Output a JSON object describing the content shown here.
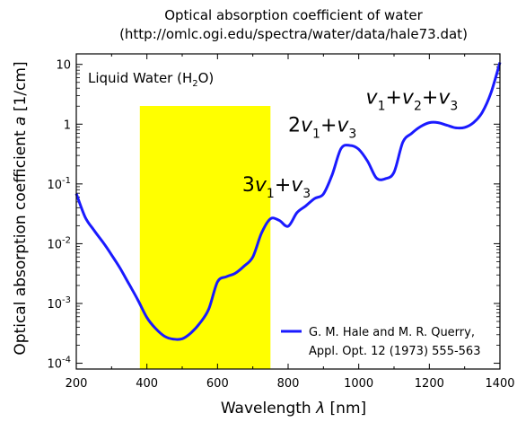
{
  "chart_data": {
    "type": "line",
    "title": "Optical absorption coefficient of water",
    "subtitle": "(http://omlc.ogi.edu/spectra/water/data/hale73.dat)",
    "inner_label_main": "Liquid Water (H",
    "inner_label_sub": "2",
    "inner_label_end": "O)",
    "xlabel_main": "Wavelength ",
    "xlabel_symbol": "λ",
    "xlabel_unit": " [nm]",
    "ylabel_main": "Optical absorption coefficient ",
    "ylabel_symbol": "a",
    "ylabel_unit": " [1/cm]",
    "xlim": [
      200,
      1400
    ],
    "ylim": [
      8e-05,
      15
    ],
    "yscale": "log",
    "x_ticks": [
      "200",
      "400",
      "600",
      "800",
      "1000",
      "1200",
      "1400"
    ],
    "y_ticks": [
      {
        "base": "10",
        "exp": "-4",
        "value": 0.0001
      },
      {
        "base": "10",
        "exp": "-3",
        "value": 0.001
      },
      {
        "base": "10",
        "exp": "-2",
        "value": 0.01
      },
      {
        "base": "10",
        "exp": "-1",
        "value": 0.1
      },
      {
        "base": "1",
        "exp": "",
        "value": 1
      },
      {
        "base": "10",
        "exp": "",
        "value": 10
      }
    ],
    "highlight_band": {
      "x_from": 380,
      "x_to": 750,
      "color": "#ffff00"
    },
    "series": [
      {
        "name": "G. M. Hale and M. R. Querry,",
        "name_line2": "Appl. Opt. 12 (1973) 555-563",
        "color": "#1a1aff",
        "x": [
          200,
          225,
          250,
          275,
          300,
          325,
          350,
          375,
          400,
          425,
          450,
          475,
          500,
          525,
          550,
          575,
          600,
          625,
          650,
          675,
          700,
          725,
          750,
          775,
          800,
          825,
          850,
          875,
          900,
          925,
          950,
          975,
          1000,
          1025,
          1050,
          1075,
          1100,
          1125,
          1150,
          1175,
          1200,
          1225,
          1250,
          1275,
          1300,
          1325,
          1350,
          1375,
          1400
        ],
        "y": [
          0.069,
          0.028,
          0.0168,
          0.0107,
          0.0065,
          0.0038,
          0.00208,
          0.00113,
          0.00058,
          0.000379,
          0.000283,
          0.000253,
          0.000257,
          0.000323,
          0.000468,
          0.0008,
          0.0023,
          0.0028,
          0.0032,
          0.0042,
          0.006,
          0.0152,
          0.0261,
          0.0245,
          0.0196,
          0.033,
          0.0429,
          0.0571,
          0.0678,
          0.144,
          0.391,
          0.441,
          0.379,
          0.24,
          0.126,
          0.122,
          0.157,
          0.5,
          0.702,
          0.91,
          1.06,
          1.06,
          0.958,
          0.868,
          0.882,
          1.06,
          1.58,
          3.4,
          10.8
        ]
      }
    ],
    "annotations": [
      {
        "coef1": "3",
        "v1": "v",
        "s1": "1",
        "op": "+",
        "v2": "v",
        "s2": "3",
        "at_x": 670,
        "at_y": 0.075
      },
      {
        "coef1": "2",
        "v1": "v",
        "s1": "1",
        "op": "+",
        "v2": "v",
        "s2": "3",
        "at_x": 800,
        "at_y": 0.75
      },
      {
        "coef1": "",
        "v1": "v",
        "s1": "1",
        "op": "+",
        "v2": "v",
        "s2": "2",
        "op2": "+",
        "v3": "v",
        "s3": "3",
        "at_x": 1020,
        "at_y": 2.2
      }
    ]
  }
}
